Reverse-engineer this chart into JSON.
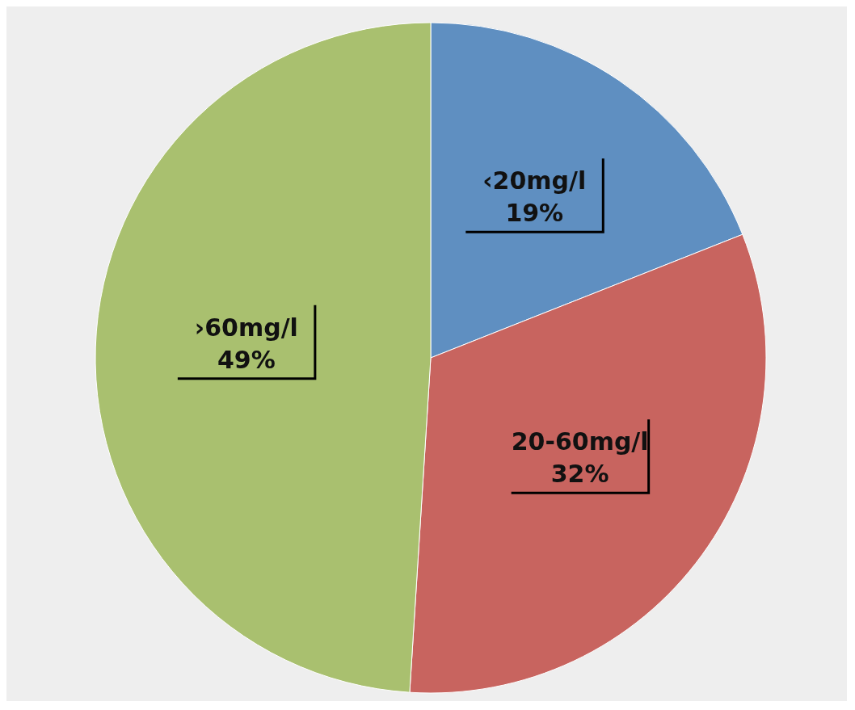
{
  "chart_data": {
    "type": "pie",
    "categories": [
      "‹20mg/l",
      "20-60mg/l",
      "›60mg/l"
    ],
    "values": [
      19,
      32,
      49
    ],
    "value_labels": [
      "19%",
      "32%",
      "49%"
    ],
    "colors": [
      "#5f8fc1",
      "#c8645f",
      "#a9c06f"
    ]
  }
}
